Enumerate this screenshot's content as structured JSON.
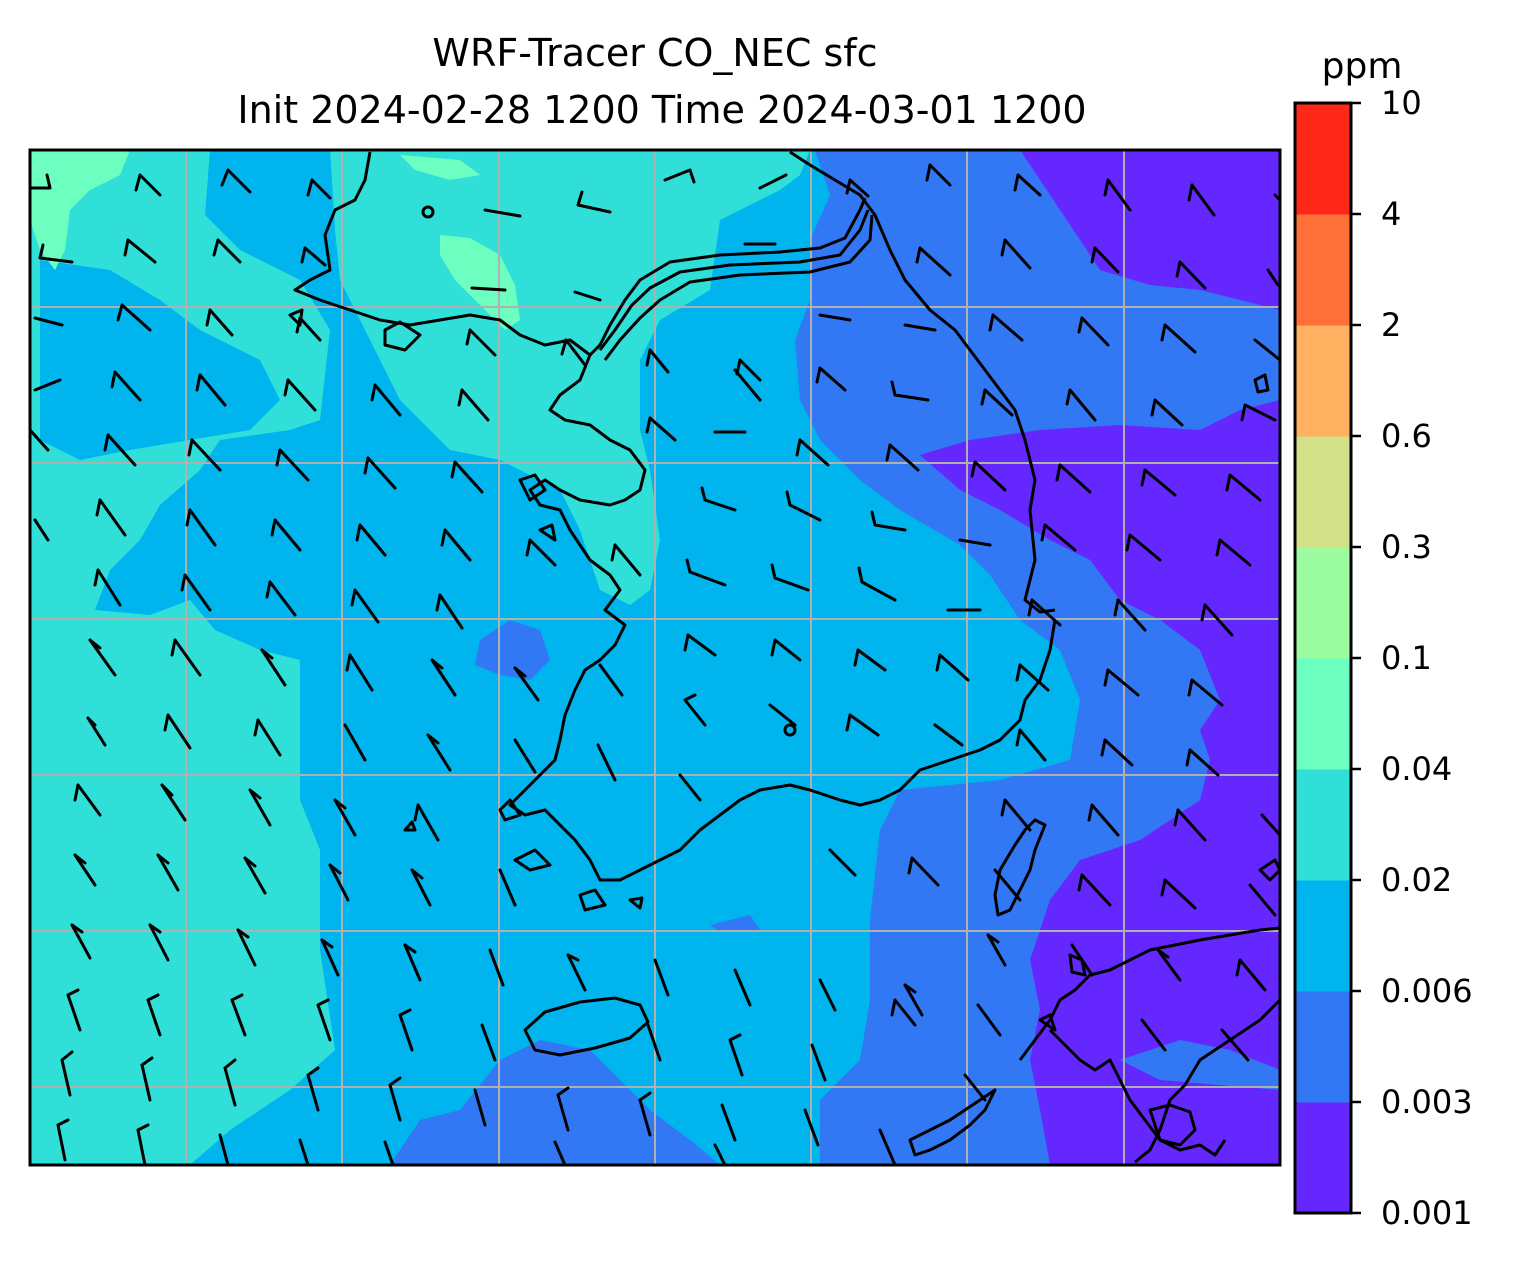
{
  "title_line1": "WRF-Tracer CO_NEC sfc",
  "title_line2": "Init 2024-02-28 1200 Time 2024-03-01 1200",
  "colorbar": {
    "unit": "ppm",
    "tick_labels": [
      "0.001",
      "0.003",
      "0.006",
      "0.02",
      "0.04",
      "0.1",
      "0.3",
      "0.6",
      "2",
      "4",
      "10"
    ],
    "colors": [
      "#6428ff",
      "#3278f5",
      "#00b4ee",
      "#30e0d8",
      "#6cffc0",
      "#9cfca0",
      "#d2e088",
      "#ffb060",
      "#ff7038",
      "#ff2818"
    ]
  },
  "map": {
    "field_colors": {
      "band_0_001": "#6428ff",
      "band_0_003": "#3278f5",
      "band_0_006": "#00b4ee",
      "band_0_02": "#30e0d8",
      "band_0_04": "#6cffc0"
    },
    "gridline_color": "#b0b0b0",
    "coastline_color": "#000000",
    "wind_barbs": "north-westerly surface wind barbs",
    "gridlines": true
  }
}
